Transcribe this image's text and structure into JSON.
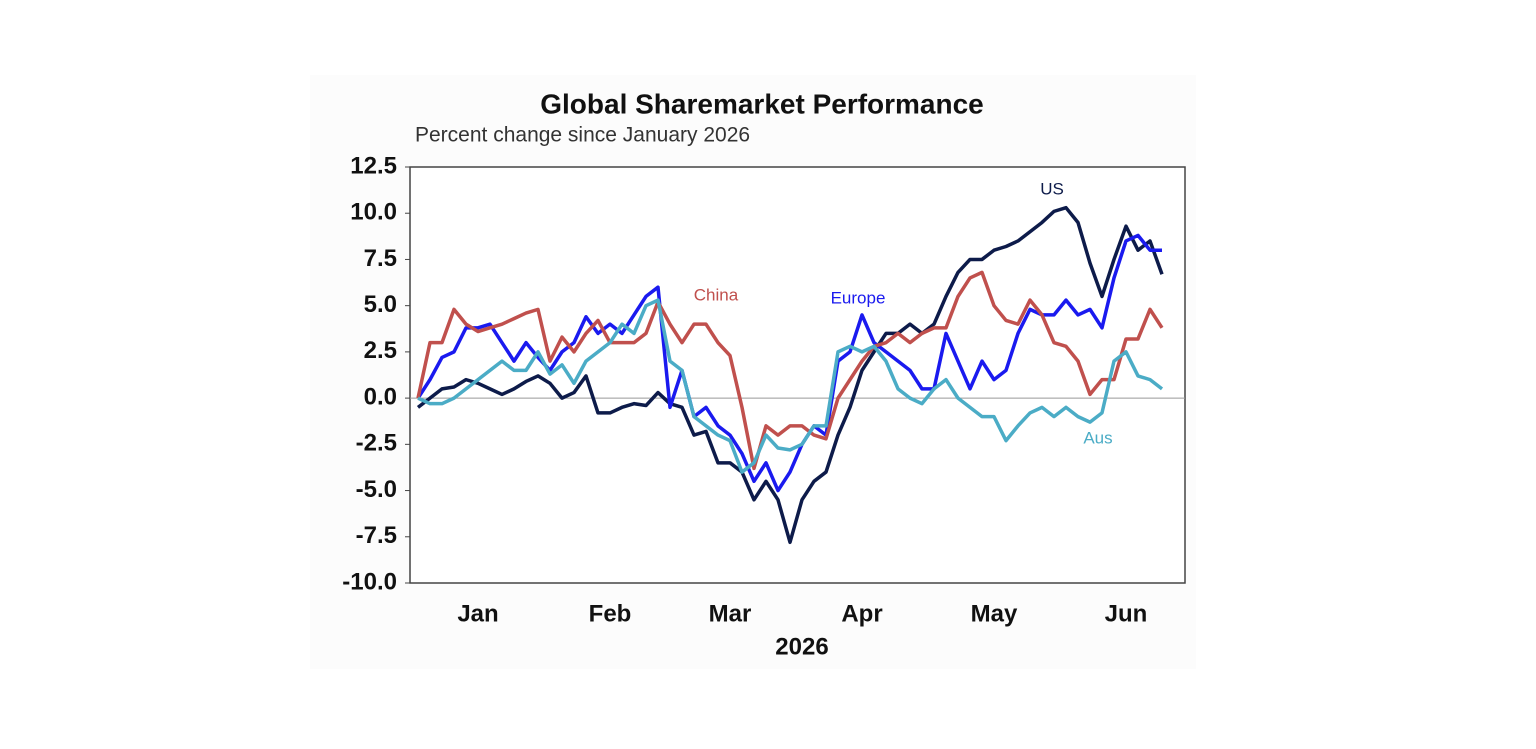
{
  "chart_data": {
    "type": "line",
    "title": "Global Sharemarket Performance",
    "subtitle": "Percent change since January 2026",
    "xlabel": "2026",
    "categories": [
      null,
      null,
      null,
      null,
      null,
      "Jan",
      null,
      null,
      null,
      null,
      null,
      null,
      null,
      null,
      null,
      null,
      "Feb",
      null,
      null,
      null,
      null,
      null,
      null,
      null,
      null,
      null,
      "Mar",
      null,
      null,
      null,
      null,
      null,
      null,
      null,
      null,
      null,
      null,
      "Apr",
      null,
      null,
      null,
      null,
      null,
      null,
      null,
      null,
      null,
      null,
      "May",
      null,
      null,
      null,
      null,
      null,
      null,
      null,
      null,
      null,
      null,
      "Jun",
      null,
      null,
      null
    ],
    "series": [
      {
        "name": "US",
        "color": "#0d1b4a",
        "values": [
          -0.5,
          0,
          0.5,
          0.6,
          1.0,
          0.8,
          0.5,
          0.2,
          0.5,
          0.9,
          1.2,
          0.8,
          0,
          0.3,
          1.2,
          -0.8,
          -0.8,
          -0.5,
          -0.3,
          -0.4,
          0.3,
          -0.3,
          -0.5,
          -2,
          -1.8,
          -3.5,
          -3.5,
          -4,
          -5.5,
          -4.5,
          -5.5,
          -7.8,
          -5.5,
          -4.5,
          -4,
          -2,
          -0.5,
          1.5,
          2.5,
          3.5,
          3.5,
          4,
          3.5,
          4,
          5.5,
          6.8,
          7.5,
          7.5,
          8,
          8.2,
          8.5,
          9,
          9.5,
          10.1,
          10.3,
          9.5,
          7.3,
          5.5,
          7.5,
          9.3,
          8,
          8.5,
          6.7
        ]
      },
      {
        "name": "Europe",
        "color": "#1a1aef",
        "values": [
          0,
          1,
          2.2,
          2.5,
          3.8,
          3.8,
          4,
          3,
          2,
          3,
          2.2,
          1.5,
          2.5,
          3,
          4.4,
          3.5,
          4,
          3.5,
          4.5,
          5.5,
          6,
          -0.5,
          1.5,
          -1,
          -0.5,
          -1.5,
          -2,
          -3,
          -4.5,
          -3.5,
          -5,
          -4,
          -2.5,
          -1.5,
          -2,
          2,
          2.5,
          4.5,
          3,
          2.5,
          2,
          1.5,
          0.5,
          0.5,
          3.5,
          2,
          0.5,
          2,
          1,
          1.5,
          3.5,
          4.8,
          4.5,
          4.5,
          5.3,
          4.5,
          4.8,
          3.8,
          6.5,
          8.5,
          8.8,
          8,
          8
        ]
      },
      {
        "name": "China",
        "color": "#c0504d",
        "values": [
          0,
          3,
          3,
          4.8,
          4,
          3.6,
          3.8,
          4,
          4.3,
          4.6,
          4.8,
          2,
          3.3,
          2.5,
          3.5,
          4.2,
          3,
          3,
          3,
          3.5,
          5.2,
          4,
          3,
          4,
          4,
          3,
          2.3,
          -0.5,
          -3.8,
          -1.5,
          -2,
          -1.5,
          -1.5,
          -2,
          -2.2,
          0,
          1,
          2,
          2.8,
          3,
          3.5,
          3,
          3.5,
          3.8,
          3.8,
          5.5,
          6.5,
          6.8,
          5,
          4.2,
          4,
          5.3,
          4.5,
          3,
          2.8,
          2,
          0.2,
          1,
          1,
          3.2,
          3.2,
          4.8,
          3.8
        ]
      },
      {
        "name": "Aus",
        "color": "#4bacc6",
        "values": [
          0,
          -0.3,
          -0.3,
          0,
          0.5,
          1,
          1.5,
          2,
          1.5,
          1.5,
          2.5,
          1.3,
          1.8,
          0.8,
          2,
          2.5,
          3,
          4,
          3.5,
          5,
          5.3,
          2,
          1.5,
          -1,
          -1.5,
          -2,
          -2.3,
          -4,
          -3.5,
          -2,
          -2.7,
          -2.8,
          -2.5,
          -1.5,
          -1.5,
          2.5,
          2.8,
          2.5,
          2.8,
          2,
          0.5,
          0,
          -0.3,
          0.5,
          1,
          0,
          -0.5,
          -1,
          -1,
          -2.3,
          -1.5,
          -0.8,
          -0.5,
          -1,
          -0.5,
          -1,
          -1.3,
          -0.8,
          2,
          2.5,
          1.2,
          1,
          0.5
        ]
      }
    ],
    "ylim": [
      -10,
      12.5
    ],
    "yticks": [
      {
        "value": -10,
        "label": "-10.0"
      },
      -7.5,
      {
        "value": -5,
        "label": "-5.0"
      },
      -2.5,
      {
        "value": 0,
        "label": "0.0"
      },
      2.5,
      {
        "value": 5,
        "label": "5.0"
      },
      7.5,
      {
        "value": 10,
        "label": "10.0"
      },
      12.5
    ]
  }
}
